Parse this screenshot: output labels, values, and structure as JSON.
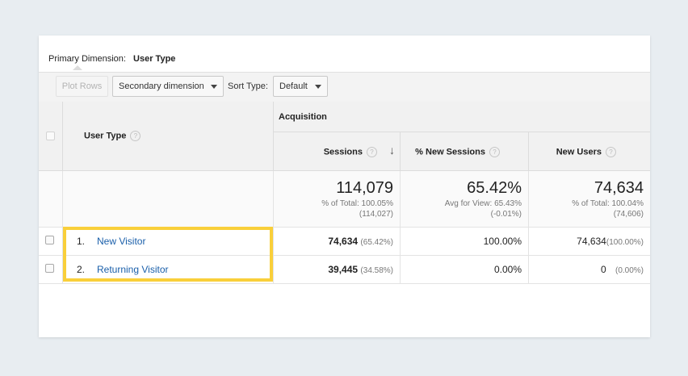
{
  "primary_dimension": {
    "label": "Primary Dimension:",
    "value": "User Type"
  },
  "toolbar": {
    "plot_rows": "Plot Rows",
    "secondary_dimension": "Secondary dimension",
    "sort_type_label": "Sort Type:",
    "sort_type_value": "Default"
  },
  "table": {
    "dimension_header": "User Type",
    "group_header": "Acquisition",
    "columns": [
      "Sessions",
      "% New Sessions",
      "New Users"
    ],
    "totals": {
      "sessions": {
        "value": "114,079",
        "line1": "% of Total: 100.05%",
        "line2": "(114,027)"
      },
      "new_sessions": {
        "value": "65.42%",
        "line1": "Avg for View: 65.43%",
        "line2": "(-0.01%)"
      },
      "new_users": {
        "value": "74,634",
        "line1": "% of Total: 100.04%",
        "line2": "(74,606)"
      }
    },
    "rows": [
      {
        "index": "1.",
        "name": "New Visitor",
        "sessions": "74,634",
        "sessions_pct": "(65.42%)",
        "new_sessions": "100.00%",
        "new_users": "74,634",
        "new_users_pct": "(100.00%)"
      },
      {
        "index": "2.",
        "name": "Returning Visitor",
        "sessions": "39,445",
        "sessions_pct": "(34.58%)",
        "new_sessions": "0.00%",
        "new_users": "0",
        "new_users_pct": "(0.00%)"
      }
    ]
  },
  "colors": {
    "highlight": "#f9cf3a",
    "link": "#1a5faa"
  },
  "icons": [
    "help-icon",
    "sort-descending-icon",
    "dropdown-arrow-icon",
    "checkbox"
  ]
}
